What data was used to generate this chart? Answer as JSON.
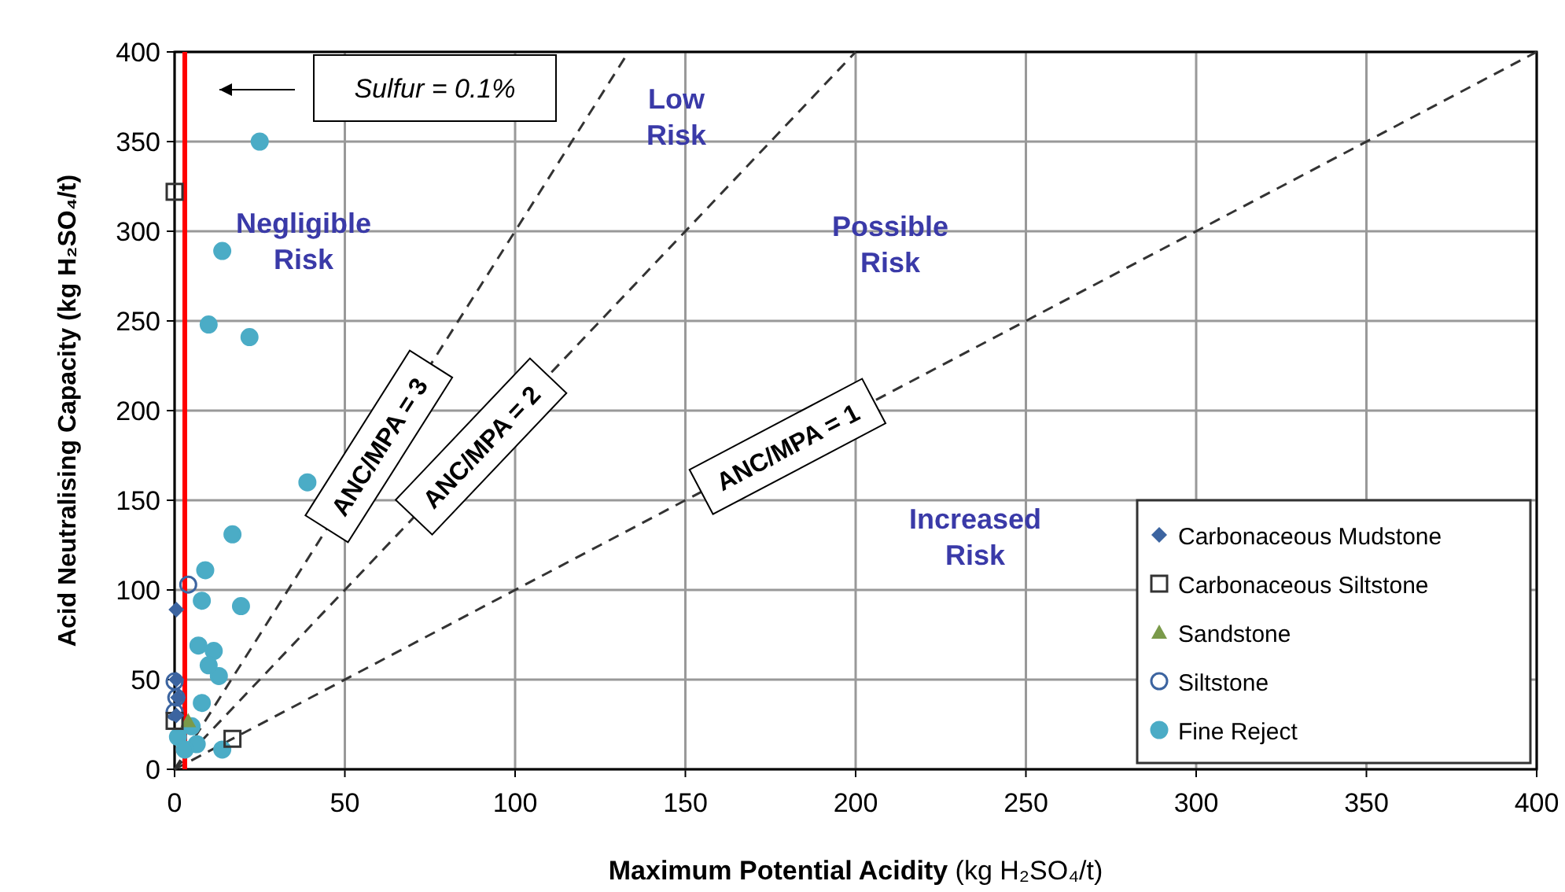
{
  "chart_data": {
    "type": "scatter",
    "xlabel": "Maximum Potential Acidity (kg H₂SO₄/t)",
    "ylabel": "Acid Neutralising Capacity (kg H₂SO₄/t)",
    "xlim": [
      0,
      400
    ],
    "ylim": [
      0,
      400
    ],
    "xticks": [
      0,
      50,
      100,
      150,
      200,
      250,
      300,
      350,
      400
    ],
    "yticks": [
      0,
      50,
      100,
      150,
      200,
      250,
      300,
      350,
      400
    ],
    "grid": true,
    "legend": "bottom right",
    "series": [
      {
        "name": "ANC/MPA = 3",
        "type": "line",
        "line_style": "dashed",
        "color": "#333333",
        "x": [
          0,
          133.3
        ],
        "values": [
          0,
          400
        ]
      },
      {
        "name": "ANC/MPA = 2",
        "type": "line",
        "line_style": "dashed",
        "color": "#333333",
        "x": [
          0,
          200
        ],
        "values": [
          0,
          400
        ]
      },
      {
        "name": "ANC/MPA = 1",
        "type": "line",
        "line_style": "dashed",
        "color": "#333333",
        "x": [
          0,
          400
        ],
        "values": [
          0,
          400
        ]
      },
      {
        "name": "Carbonaceous Mudstone",
        "marker": "diamond",
        "color": "#3c64a0",
        "x": [
          0.5,
          0.5,
          0.5,
          1
        ],
        "values": [
          89,
          50,
          30,
          40
        ]
      },
      {
        "name": "Carbonaceous Siltstone",
        "marker": "square",
        "color": "#333333",
        "x": [
          0,
          17,
          0
        ],
        "values": [
          322,
          17,
          27
        ]
      },
      {
        "name": "Sandstone",
        "marker": "triangle",
        "color": "#7a9a4a",
        "x": [
          4
        ],
        "values": [
          27
        ]
      },
      {
        "name": "Siltstone",
        "marker": "circle",
        "color": "#3c64a0",
        "x": [
          4,
          0,
          0.5,
          0
        ],
        "values": [
          103,
          49,
          40,
          32
        ]
      },
      {
        "name": "Fine Reject",
        "marker": "circle",
        "color": "#4bacc6",
        "x": [
          25,
          14,
          10,
          22,
          39,
          17,
          9,
          8,
          19.5,
          7,
          11.5,
          10,
          13,
          8,
          5,
          6.5,
          14,
          1,
          3
        ],
        "values": [
          350,
          289,
          248,
          241,
          160,
          131,
          111,
          94,
          91,
          69,
          66,
          58,
          52,
          37,
          24,
          14,
          11,
          18,
          11
        ]
      }
    ],
    "ref_lines": [
      {
        "axis": "x",
        "value": 3,
        "color": "#ff0000"
      }
    ],
    "annotations": [
      "Sulfur = 0.1%",
      "Negligible Risk",
      "Low Risk",
      "Possible Risk",
      "Increased Risk"
    ]
  }
}
